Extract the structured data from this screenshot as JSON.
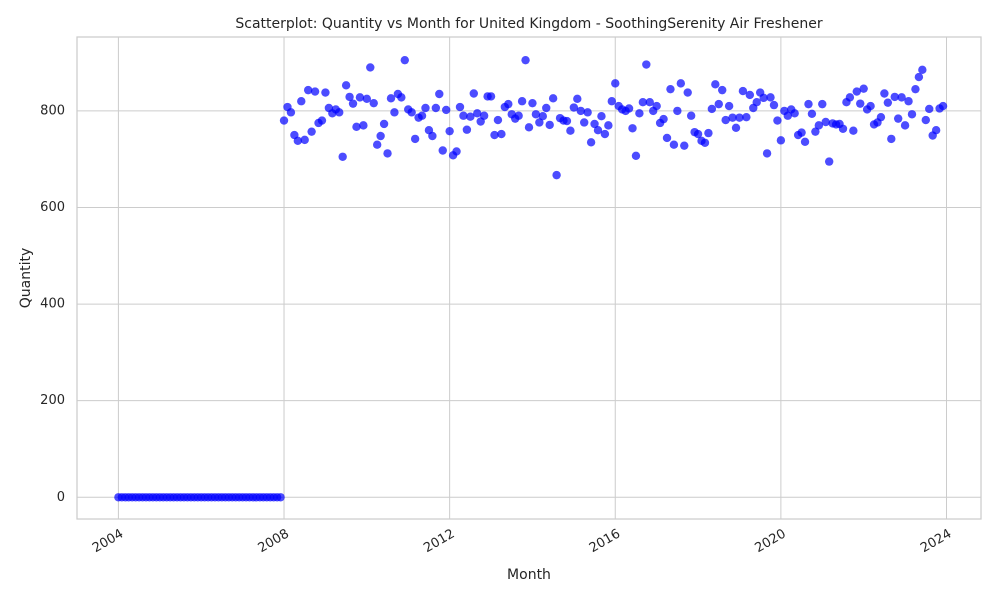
{
  "chart_data": {
    "type": "scatter",
    "title": "Scatterplot: Quantity vs Month for United Kingdom - SoothingSerenity Air Freshener",
    "xlabel": "Month",
    "ylabel": "Quantity",
    "color": "#0000ff",
    "grid": true,
    "xlim": [
      "2003-01",
      "2024-11"
    ],
    "xticks": [
      "2004",
      "2008",
      "2012",
      "2016",
      "2020",
      "2024"
    ],
    "ylim": [
      -45,
      953
    ],
    "yticks": [
      0,
      200,
      400,
      600,
      800
    ],
    "x": [
      "2004-01",
      "2004-02",
      "2004-03",
      "2004-04",
      "2004-05",
      "2004-06",
      "2004-07",
      "2004-08",
      "2004-09",
      "2004-10",
      "2004-11",
      "2004-12",
      "2005-01",
      "2005-02",
      "2005-03",
      "2005-04",
      "2005-05",
      "2005-06",
      "2005-07",
      "2005-08",
      "2005-09",
      "2005-10",
      "2005-11",
      "2005-12",
      "2006-01",
      "2006-02",
      "2006-03",
      "2006-04",
      "2006-05",
      "2006-06",
      "2006-07",
      "2006-08",
      "2006-09",
      "2006-10",
      "2006-11",
      "2006-12",
      "2007-01",
      "2007-02",
      "2007-03",
      "2007-04",
      "2007-05",
      "2007-06",
      "2007-07",
      "2007-08",
      "2007-09",
      "2007-10",
      "2007-11",
      "2007-12",
      "2008-01",
      "2008-02",
      "2008-03",
      "2008-04",
      "2008-05",
      "2008-06",
      "2008-07",
      "2008-08",
      "2008-09",
      "2008-10",
      "2008-11",
      "2008-12",
      "2009-01",
      "2009-02",
      "2009-03",
      "2009-04",
      "2009-05",
      "2009-06",
      "2009-07",
      "2009-08",
      "2009-09",
      "2009-10",
      "2009-11",
      "2009-12",
      "2010-01",
      "2010-02",
      "2010-03",
      "2010-04",
      "2010-05",
      "2010-06",
      "2010-07",
      "2010-08",
      "2010-09",
      "2010-10",
      "2010-11",
      "2010-12",
      "2011-01",
      "2011-02",
      "2011-03",
      "2011-04",
      "2011-05",
      "2011-06",
      "2011-07",
      "2011-08",
      "2011-09",
      "2011-10",
      "2011-11",
      "2011-12",
      "2012-01",
      "2012-02",
      "2012-03",
      "2012-04",
      "2012-05",
      "2012-06",
      "2012-07",
      "2012-08",
      "2012-09",
      "2012-10",
      "2012-11",
      "2012-12",
      "2013-01",
      "2013-02",
      "2013-03",
      "2013-04",
      "2013-05",
      "2013-06",
      "2013-07",
      "2013-08",
      "2013-09",
      "2013-10",
      "2013-11",
      "2013-12",
      "2014-01",
      "2014-02",
      "2014-03",
      "2014-04",
      "2014-05",
      "2014-06",
      "2014-07",
      "2014-08",
      "2014-09",
      "2014-10",
      "2014-11",
      "2014-12",
      "2015-01",
      "2015-02",
      "2015-03",
      "2015-04",
      "2015-05",
      "2015-06",
      "2015-07",
      "2015-08",
      "2015-09",
      "2015-10",
      "2015-11",
      "2015-12",
      "2016-01",
      "2016-02",
      "2016-03",
      "2016-04",
      "2016-05",
      "2016-06",
      "2016-07",
      "2016-08",
      "2016-09",
      "2016-10",
      "2016-11",
      "2016-12",
      "2017-01",
      "2017-02",
      "2017-03",
      "2017-04",
      "2017-05",
      "2017-06",
      "2017-07",
      "2017-08",
      "2017-09",
      "2017-10",
      "2017-11",
      "2017-12",
      "2018-01",
      "2018-02",
      "2018-03",
      "2018-04",
      "2018-05",
      "2018-06",
      "2018-07",
      "2018-08",
      "2018-09",
      "2018-10",
      "2018-11",
      "2018-12",
      "2019-01",
      "2019-02",
      "2019-03",
      "2019-04",
      "2019-05",
      "2019-06",
      "2019-07",
      "2019-08",
      "2019-09",
      "2019-10",
      "2019-11",
      "2019-12",
      "2020-01",
      "2020-02",
      "2020-03",
      "2020-04",
      "2020-05",
      "2020-06",
      "2020-07",
      "2020-08",
      "2020-09",
      "2020-10",
      "2020-11",
      "2020-12",
      "2021-01",
      "2021-02",
      "2021-03",
      "2021-04",
      "2021-05",
      "2021-06",
      "2021-07",
      "2021-08",
      "2021-09",
      "2021-10",
      "2021-11",
      "2021-12",
      "2022-01",
      "2022-02",
      "2022-03",
      "2022-04",
      "2022-05",
      "2022-06",
      "2022-07",
      "2022-08",
      "2022-09",
      "2022-10",
      "2022-11",
      "2022-12",
      "2023-01",
      "2023-02",
      "2023-03",
      "2023-04",
      "2023-05",
      "2023-06",
      "2023-07",
      "2023-08",
      "2023-09",
      "2023-10",
      "2023-11",
      "2023-12"
    ],
    "values": [
      0,
      0,
      0,
      0,
      0,
      0,
      0,
      0,
      0,
      0,
      0,
      0,
      0,
      0,
      0,
      0,
      0,
      0,
      0,
      0,
      0,
      0,
      0,
      0,
      0,
      0,
      0,
      0,
      0,
      0,
      0,
      0,
      0,
      0,
      0,
      0,
      0,
      0,
      0,
      0,
      0,
      0,
      0,
      0,
      0,
      0,
      0,
      0,
      780,
      808,
      797,
      750,
      738,
      820,
      740,
      843,
      757,
      840,
      775,
      780,
      838,
      806,
      795,
      803,
      797,
      705,
      853,
      829,
      815,
      767,
      828,
      770,
      825,
      890,
      816,
      730,
      748,
      773,
      712,
      826,
      797,
      835,
      828,
      905,
      803,
      797,
      742,
      786,
      790,
      806,
      760,
      748,
      806,
      835,
      718,
      802,
      758,
      708,
      716,
      808,
      790,
      761,
      788,
      836,
      795,
      778,
      790,
      830,
      830,
      750,
      781,
      752,
      808,
      814,
      793,
      784,
      790,
      820,
      905,
      766,
      816,
      793,
      776,
      789,
      806,
      771,
      826,
      667,
      785,
      780,
      779,
      759,
      807,
      825,
      800,
      776,
      797,
      735,
      773,
      760,
      789,
      752,
      770,
      820,
      857,
      810,
      803,
      800,
      805,
      764,
      707,
      795,
      818,
      896,
      818,
      800,
      810,
      775,
      783,
      744,
      845,
      730,
      800,
      857,
      728,
      838,
      790,
      756,
      752,
      738,
      734,
      754,
      804,
      855,
      814,
      843,
      781,
      810,
      786,
      765,
      786,
      841,
      787,
      833,
      806,
      818,
      838,
      827,
      712,
      828,
      812,
      780,
      739,
      800,
      790,
      803,
      795,
      750,
      755,
      736,
      814,
      794,
      757,
      770,
      814,
      777,
      695,
      774,
      772,
      773,
      763,
      818,
      828,
      759,
      840,
      815,
      846,
      803,
      810,
      772,
      776,
      787,
      836,
      817,
      742,
      829,
      784,
      828,
      770,
      820,
      793,
      845,
      870,
      885,
      781,
      804,
      749,
      760,
      805,
      810
    ]
  }
}
